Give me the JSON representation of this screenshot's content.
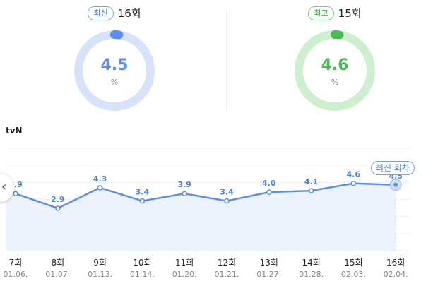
{
  "summary": {
    "latest": {
      "badge": "최신",
      "episode": "16회",
      "value": "4.5",
      "unit": "%",
      "fill_fraction": 0.02,
      "color": "#5b8def",
      "track_color": "#d6e3fb"
    },
    "best": {
      "badge": "최고",
      "episode": "15회",
      "value": "4.6",
      "unit": "%",
      "fill_fraction": 0.02,
      "color": "#4cbb52",
      "track_color": "#cdefcd"
    }
  },
  "channel": "tvN",
  "latest_tag": "최신 회차",
  "nav": {
    "prev_icon": "chevron-left-icon",
    "prev_glyph": "‹"
  },
  "chart_data": {
    "type": "line",
    "x": [
      "7회",
      "8회",
      "9회",
      "10회",
      "11회",
      "12회",
      "13회",
      "14회",
      "15회",
      "16회"
    ],
    "dates": [
      "01.06.",
      "01.07.",
      "01.13.",
      "01.14.",
      "01.20.",
      "01.21.",
      "01.27.",
      "01.28.",
      "02.03.",
      "02.04."
    ],
    "values": [
      3.9,
      2.9,
      4.3,
      3.4,
      3.9,
      3.4,
      4.0,
      4.1,
      4.6,
      4.5
    ],
    "labels": [
      "3.9",
      "2.9",
      "4.3",
      "3.4",
      "3.9",
      "3.4",
      "4.0",
      "4.1",
      "4.6",
      "4.5"
    ],
    "ylim": [
      0,
      7
    ],
    "grid": true,
    "color": "#5b8def",
    "fill_color": "#edf3fd",
    "highlight_index": 9
  }
}
